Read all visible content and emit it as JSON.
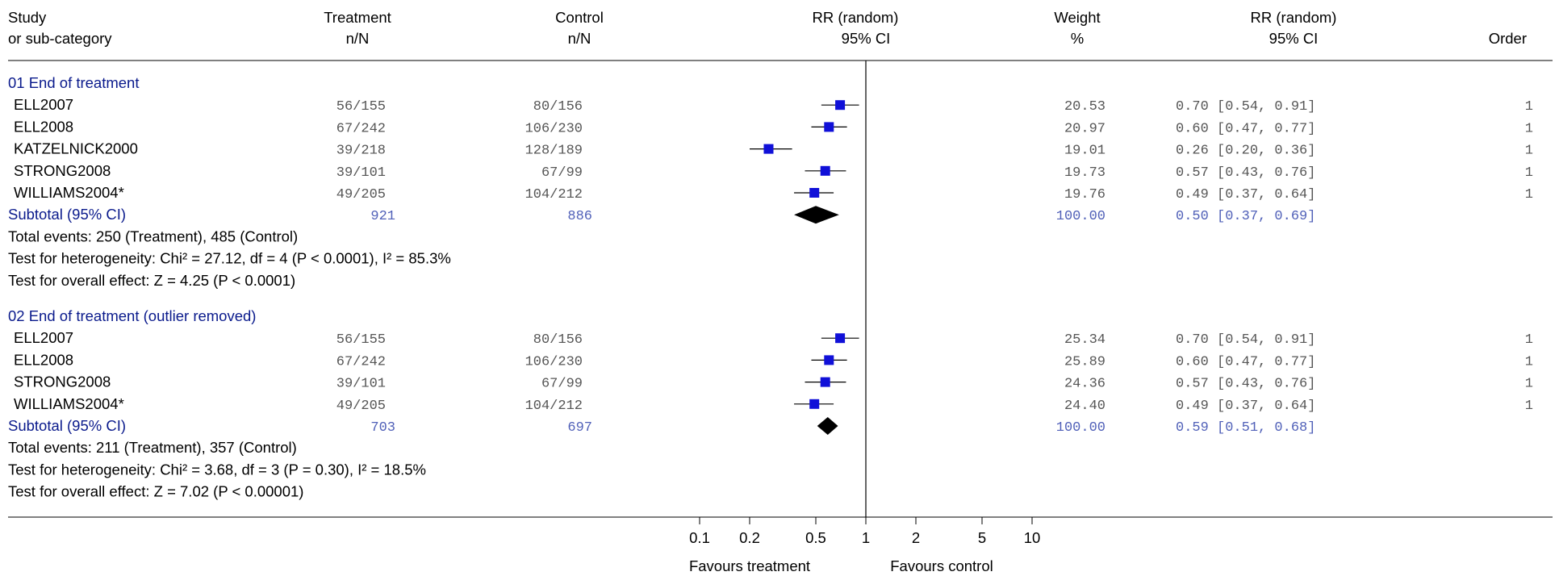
{
  "header": {
    "study_line1": "Study",
    "study_line2": "or sub-category",
    "treatment_line1": "Treatment",
    "treatment_line2": "n/N",
    "control_line1": "Control",
    "control_line2": "n/N",
    "rr_plot_line1": "RR (random)",
    "rr_plot_line2": "95% CI",
    "weight_line1": "Weight",
    "weight_line2": "%",
    "rr_text_line1": "RR (random)",
    "rr_text_line2": "95% CI",
    "order": "Order"
  },
  "axis": {
    "ticks": [
      "0.1",
      "0.2",
      "0.5",
      "1",
      "2",
      "5",
      "10"
    ],
    "favours_left": "Favours treatment",
    "favours_right": "Favours control"
  },
  "colors": {
    "square": "#1010d8",
    "diamond": "#000000",
    "subgroup_title": "#0a1a8c",
    "subtotal_numbers": "#5060b8"
  },
  "chart_data": {
    "type": "forest",
    "scale": "log",
    "xlim": [
      0.1,
      10
    ],
    "reference_line": 1,
    "subgroups": [
      {
        "title": "01 End of treatment",
        "studies": [
          {
            "name": "ELL2007",
            "treatment": "56/155",
            "control": "80/156",
            "weight": "20.53",
            "rr": 0.7,
            "lo": 0.54,
            "hi": 0.91,
            "ci_text": "0.70 [0.54, 0.91]",
            "order": "1"
          },
          {
            "name": "ELL2008",
            "treatment": "67/242",
            "control": "106/230",
            "weight": "20.97",
            "rr": 0.6,
            "lo": 0.47,
            "hi": 0.77,
            "ci_text": "0.60 [0.47, 0.77]",
            "order": "1"
          },
          {
            "name": "KATZELNICK2000",
            "treatment": "39/218",
            "control": "128/189",
            "weight": "19.01",
            "rr": 0.26,
            "lo": 0.2,
            "hi": 0.36,
            "ci_text": "0.26 [0.20, 0.36]",
            "order": "1"
          },
          {
            "name": "STRONG2008",
            "treatment": "39/101",
            "control": "67/99",
            "weight": "19.73",
            "rr": 0.57,
            "lo": 0.43,
            "hi": 0.76,
            "ci_text": "0.57 [0.43, 0.76]",
            "order": "1"
          },
          {
            "name": "WILLIAMS2004*",
            "treatment": "49/205",
            "control": "104/212",
            "weight": "19.76",
            "rr": 0.49,
            "lo": 0.37,
            "hi": 0.64,
            "ci_text": "0.49 [0.37, 0.64]",
            "order": "1"
          }
        ],
        "subtotal": {
          "label": "Subtotal (95% CI)",
          "treatment": "921",
          "control": "886",
          "weight": "100.00",
          "rr": 0.5,
          "lo": 0.37,
          "hi": 0.69,
          "ci_text": "0.50 [0.37, 0.69]"
        },
        "stats": [
          "Total events: 250 (Treatment), 485 (Control)",
          "Test for heterogeneity: Chi² = 27.12, df = 4 (P < 0.0001), I² = 85.3%",
          "Test for overall effect: Z = 4.25 (P < 0.0001)"
        ]
      },
      {
        "title": "02 End of treatment (outlier removed)",
        "studies": [
          {
            "name": "ELL2007",
            "treatment": "56/155",
            "control": "80/156",
            "weight": "25.34",
            "rr": 0.7,
            "lo": 0.54,
            "hi": 0.91,
            "ci_text": "0.70 [0.54, 0.91]",
            "order": "1"
          },
          {
            "name": "ELL2008",
            "treatment": "67/242",
            "control": "106/230",
            "weight": "25.89",
            "rr": 0.6,
            "lo": 0.47,
            "hi": 0.77,
            "ci_text": "0.60 [0.47, 0.77]",
            "order": "1"
          },
          {
            "name": "STRONG2008",
            "treatment": "39/101",
            "control": "67/99",
            "weight": "24.36",
            "rr": 0.57,
            "lo": 0.43,
            "hi": 0.76,
            "ci_text": "0.57 [0.43, 0.76]",
            "order": "1"
          },
          {
            "name": "WILLIAMS2004*",
            "treatment": "49/205",
            "control": "104/212",
            "weight": "24.40",
            "rr": 0.49,
            "lo": 0.37,
            "hi": 0.64,
            "ci_text": "0.49 [0.37, 0.64]",
            "order": "1"
          }
        ],
        "subtotal": {
          "label": "Subtotal (95% CI)",
          "treatment": "703",
          "control": "697",
          "weight": "100.00",
          "rr": 0.59,
          "lo": 0.51,
          "hi": 0.68,
          "ci_text": "0.59 [0.51, 0.68]"
        },
        "stats": [
          "Total events: 211 (Treatment), 357 (Control)",
          "Test for heterogeneity: Chi² = 3.68, df = 3 (P = 0.30), I² = 18.5%",
          "Test for overall effect: Z = 7.02 (P < 0.00001)"
        ]
      }
    ]
  }
}
